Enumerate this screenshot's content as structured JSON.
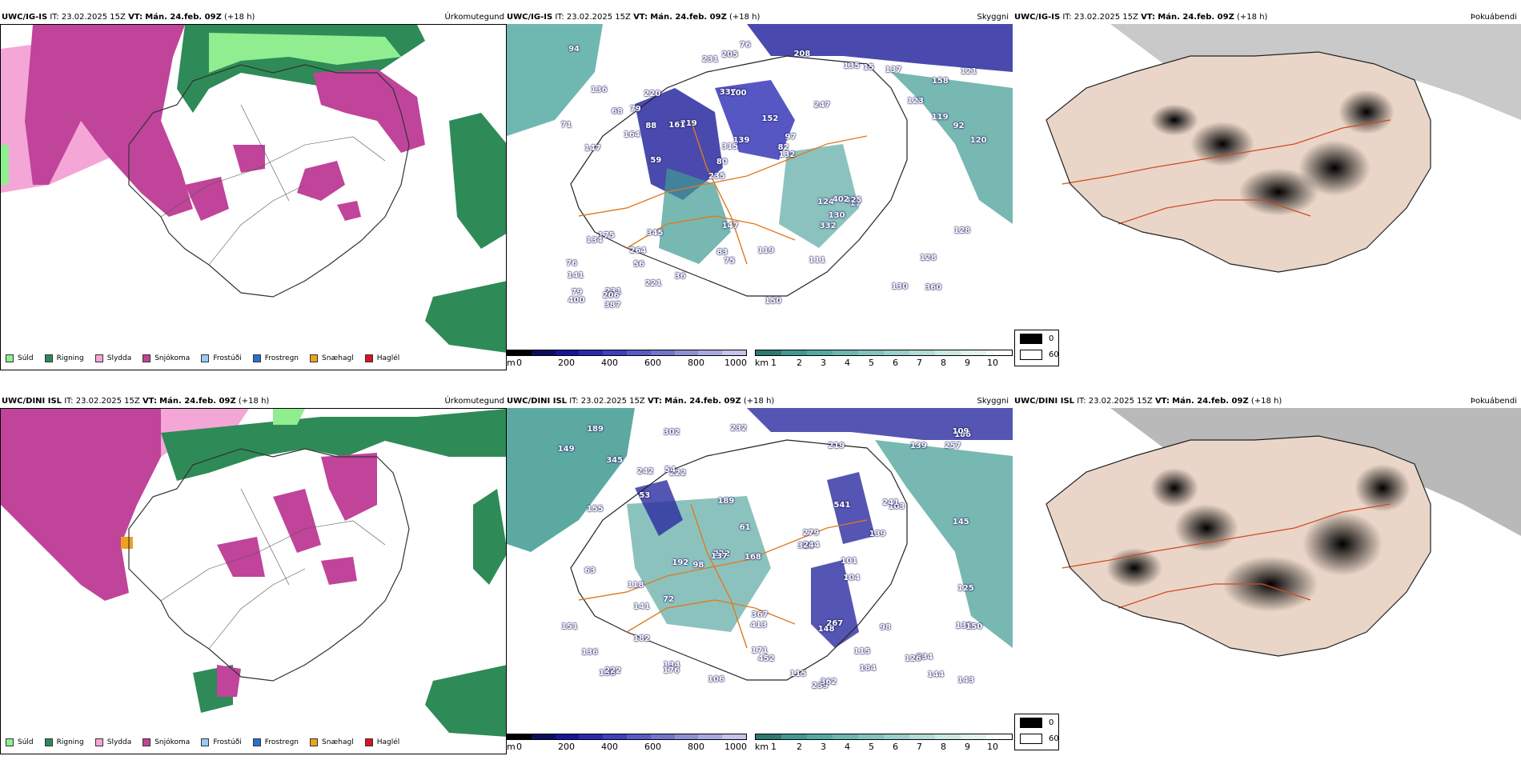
{
  "rows": [
    {
      "model": "UWC/IG-IS",
      "it_prefix": "IT:",
      "it": "23.02.2025 15Z",
      "vt_prefix": "VT:",
      "vt": "Mán. 24.feb. 09Z",
      "lead": "(+18 h)"
    },
    {
      "model": "UWC/DINI ISL",
      "it_prefix": "IT:",
      "it": "23.02.2025 15Z",
      "vt_prefix": "VT:",
      "vt": "Mán. 24.feb. 09Z",
      "lead": "(+18 h)"
    }
  ],
  "params": {
    "precip": "Úrkomutegund",
    "cloud": "Skyggni",
    "cover": "Þokuábendi"
  },
  "precip_legend": [
    {
      "label": "Súld",
      "color": "#90ee90"
    },
    {
      "label": "Rigning",
      "color": "#2e8b57"
    },
    {
      "label": "Slydda",
      "color": "#f4a6d7"
    },
    {
      "label": "Snjókoma",
      "color": "#c0449a"
    },
    {
      "label": "Frostúði",
      "color": "#9ec9f0"
    },
    {
      "label": "Frostregn",
      "color": "#2a72c9"
    },
    {
      "label": "Snæhagl",
      "color": "#f0a020"
    },
    {
      "label": "Haglél",
      "color": "#e0101a"
    }
  ],
  "colors": {
    "rain": "#2e8b57",
    "drizzle": "#90ee90",
    "sleet": "#f4a6d7",
    "snow": "#c0449a",
    "snow_grains": "#f0a020",
    "teal": "#3f9a92",
    "navy": "#2a2aa0",
    "road": "#e07a20"
  },
  "height_scale": {
    "unit": "m",
    "ticks": [
      "0",
      "200",
      "400",
      "600",
      "800",
      "1000"
    ]
  },
  "vis_scale": {
    "unit": "km",
    "ticks": [
      "1",
      "2",
      "3",
      "4",
      "5",
      "6",
      "7",
      "8",
      "9",
      "10"
    ]
  },
  "cover_legend": [
    {
      "label": "0",
      "color": "#000000"
    },
    {
      "label": "60",
      "color": "#ffffff"
    }
  ],
  "top_labels": [
    "360",
    "147",
    "158",
    "235",
    "247",
    "231",
    "337",
    "152",
    "175",
    "219",
    "141",
    "56",
    "100",
    "97",
    "17",
    "136",
    "205",
    "120",
    "124",
    "119",
    "80",
    "83",
    "315",
    "220",
    "135",
    "345",
    "130",
    "128",
    "325",
    "150",
    "161",
    "164",
    "332",
    "221",
    "92",
    "82",
    "79",
    "75",
    "132",
    "134",
    "123",
    "121",
    "130",
    "111",
    "264",
    "387",
    "400",
    "119",
    "137",
    "76",
    "59",
    "71",
    "79",
    "15",
    "206",
    "208",
    "231",
    "139",
    "128",
    "147",
    "36",
    "402",
    "88",
    "76",
    "94",
    "68"
  ],
  "bottom_labels": [
    "106",
    "239",
    "134",
    "115",
    "302",
    "345",
    "192",
    "144",
    "232",
    "189",
    "139",
    "452",
    "222",
    "413",
    "219",
    "325",
    "155",
    "176",
    "98",
    "149",
    "148",
    "186",
    "279",
    "138",
    "103",
    "118",
    "151",
    "141",
    "189",
    "104",
    "168",
    "362",
    "367",
    "257",
    "182",
    "101",
    "135",
    "136",
    "541",
    "834",
    "244",
    "139",
    "150",
    "222",
    "222",
    "267",
    "125",
    "115",
    "242",
    "171",
    "109",
    "145",
    "143",
    "98",
    "72",
    "241",
    "137",
    "61",
    "54",
    "63",
    "126",
    "184",
    "53"
  ]
}
